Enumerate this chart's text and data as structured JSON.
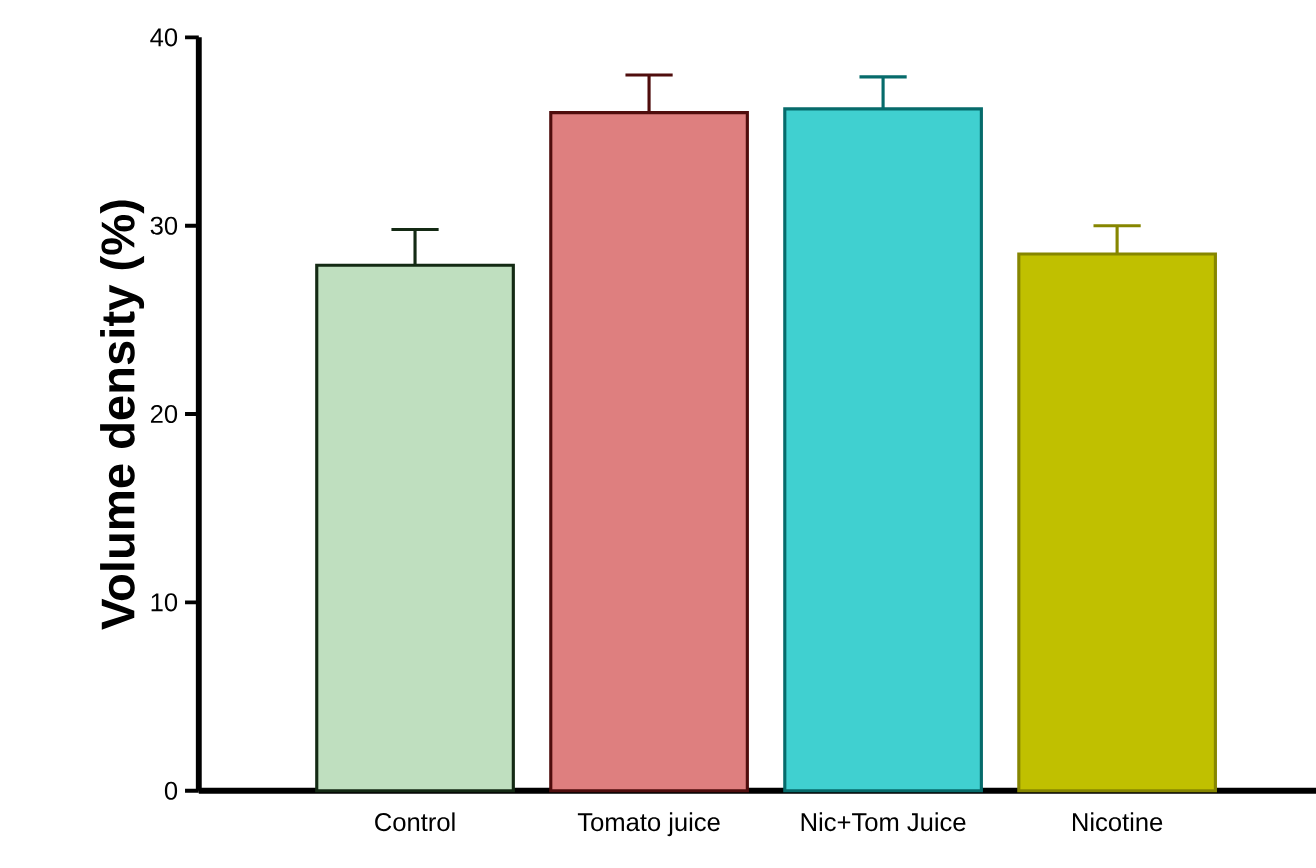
{
  "chart_data": {
    "type": "bar",
    "ylabel": "Volume density (%)",
    "categories": [
      "Control",
      "Tomato juice",
      "Nic+Tom Juice",
      "Nicotine"
    ],
    "values": [
      27.9,
      36.0,
      36.2,
      28.5
    ],
    "errors": [
      1.9,
      2.0,
      1.7,
      1.5
    ],
    "colors": [
      "#bfdfbf",
      "#de7f7f",
      "#40d0d0",
      "#c0c000"
    ],
    "ylim": [
      0,
      40
    ],
    "yticks": [
      0,
      10,
      20,
      30,
      40
    ]
  }
}
